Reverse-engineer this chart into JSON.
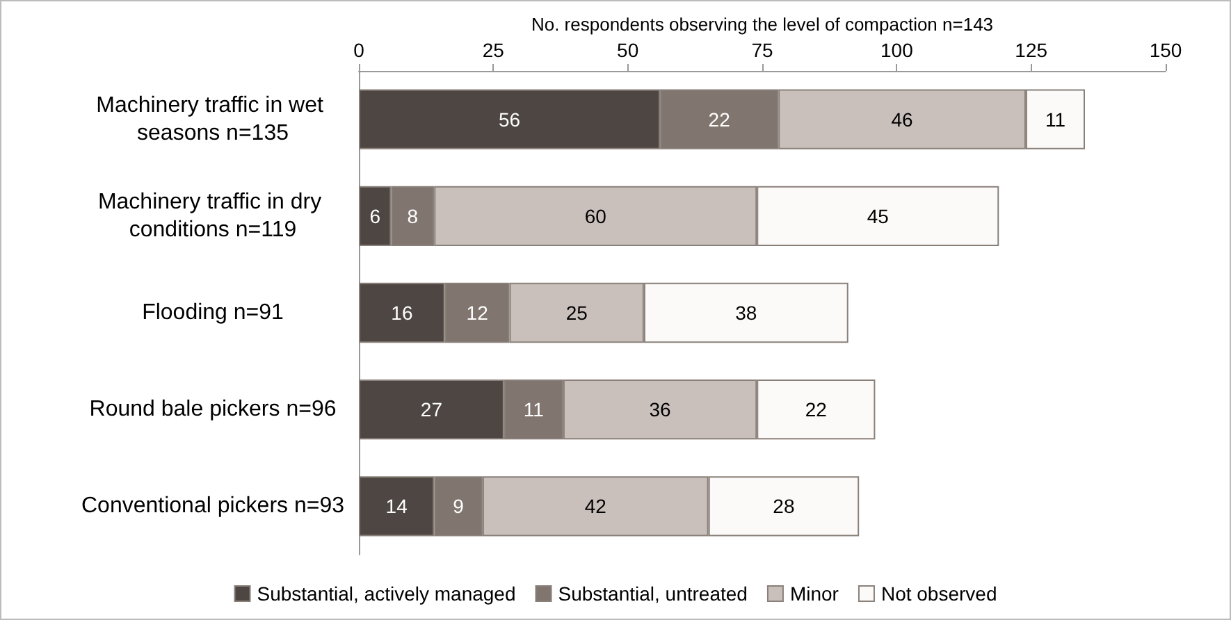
{
  "chart_data": {
    "type": "bar",
    "orientation": "horizontal",
    "stacked": true,
    "data_labels": true,
    "legend": "bottom",
    "grid": false,
    "xlabel": "No. respondents observing the level of compaction n=143",
    "xlim": [
      0,
      150
    ],
    "xticks": [
      0,
      25,
      50,
      75,
      100,
      125,
      150
    ],
    "categories": [
      "Machinery traffic in wet seasons n=135",
      "Machinery traffic in dry conditions n=119",
      "Flooding n=91",
      "Round bale pickers n=96",
      "Conventional pickers n=93"
    ],
    "series": [
      {
        "name": "Substantial, actively managed",
        "color": "#4e4642",
        "values": [
          56,
          6,
          16,
          27,
          14
        ]
      },
      {
        "name": "Substantial, untreated",
        "color": "#80756f",
        "values": [
          22,
          8,
          12,
          11,
          9
        ]
      },
      {
        "name": "Minor",
        "color": "#c9c0bc",
        "values": [
          46,
          60,
          25,
          36,
          42
        ]
      },
      {
        "name": "Not observed",
        "color": "#fbfaf8",
        "values": [
          11,
          45,
          38,
          22,
          28
        ]
      }
    ]
  }
}
